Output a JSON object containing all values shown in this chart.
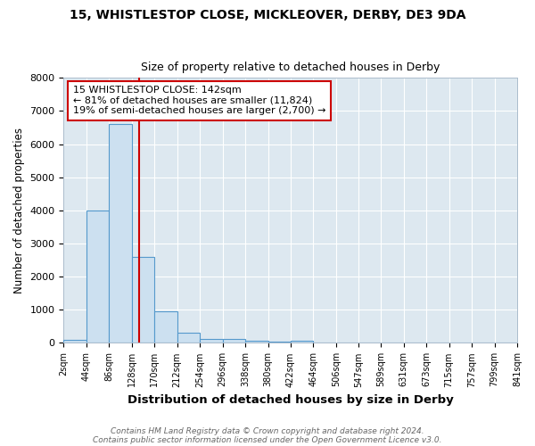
{
  "title": "15, WHISTLESTOP CLOSE, MICKLEOVER, DERBY, DE3 9DA",
  "subtitle": "Size of property relative to detached houses in Derby",
  "xlabel": "Distribution of detached houses by size in Derby",
  "ylabel": "Number of detached properties",
  "bar_color": "#cce0f0",
  "bar_edge_color": "#5599cc",
  "plot_bg_color": "#dde8f0",
  "fig_bg_color": "#ffffff",
  "grid_color": "#ffffff",
  "annotation_box_edge_color": "#cc0000",
  "annotation_line_color": "#cc0000",
  "property_line_x": 142,
  "annotation_line1": "15 WHISTLESTOP CLOSE: 142sqm",
  "annotation_line2": "← 81% of detached houses are smaller (11,824)",
  "annotation_line3": "19% of semi-detached houses are larger (2,700) →",
  "footer1": "Contains HM Land Registry data © Crown copyright and database right 2024.",
  "footer2": "Contains public sector information licensed under the Open Government Licence v3.0.",
  "bin_edges": [
    2,
    44,
    86,
    128,
    170,
    212,
    254,
    296,
    338,
    380,
    422,
    464,
    506,
    547,
    589,
    631,
    673,
    715,
    757,
    799,
    841
  ],
  "bin_counts": [
    80,
    4000,
    6600,
    2600,
    960,
    320,
    130,
    110,
    60,
    50,
    60,
    0,
    0,
    0,
    0,
    0,
    0,
    0,
    0,
    0
  ],
  "ylim": [
    0,
    8000
  ],
  "yticks": [
    0,
    1000,
    2000,
    3000,
    4000,
    5000,
    6000,
    7000,
    8000
  ]
}
